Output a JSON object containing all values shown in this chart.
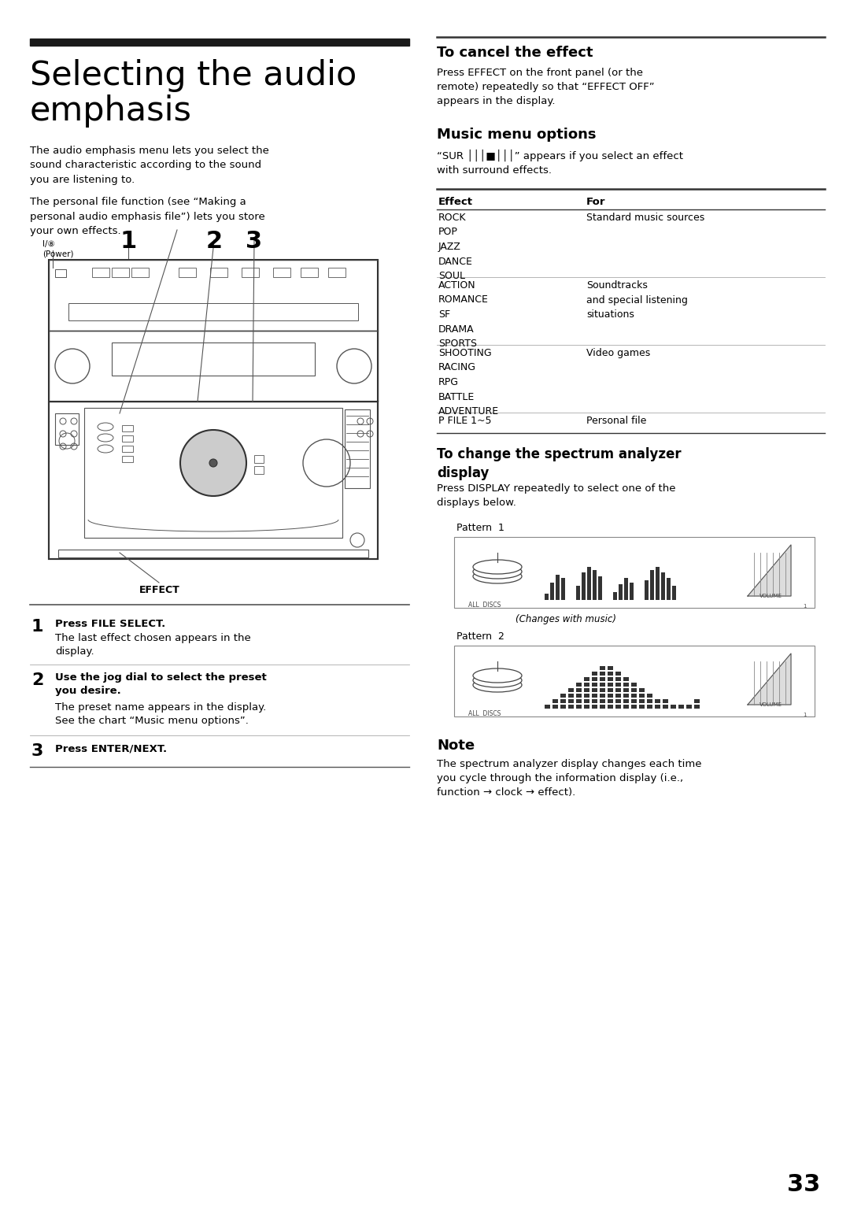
{
  "bg_color": "#ffffff",
  "title_bar_color": "#1a1a1a",
  "page_number": "33",
  "title_line1": "Selecting the audio",
  "title_line2": "emphasis",
  "body1": "The audio emphasis menu lets you select the\nsound characteristic according to the sound\nyou are listening to.",
  "body2": "The personal file function (see “Making a\npersonal audio emphasis file”) lets you store\nyour own effects.",
  "power_label": "I/⑧\n(Power)",
  "cancel_title": "To cancel the effect",
  "cancel_body": "Press EFFECT on the front panel (or the\nremote) repeatedly so that “EFFECT OFF”\nappears in the display.",
  "music_title": "Music menu options",
  "music_body": "“SUR │││■│││” appears if you select an effect\nwith surround effects.",
  "table_header_effect": "Effect",
  "table_header_for": "For",
  "row1_effect": "ROCK\nPOP\nJAZZ\nDANCE\nSOUL",
  "row1_for": "Standard music sources",
  "row2_effect": "ACTION\nROMANCE\nSF\nDRAMA\nSPORTS",
  "row2_for": "Soundtracks\nand special listening\nsituations",
  "row3_effect": "SHOOTING\nRACING\nRPG\nBATTLE\nADVENTURE",
  "row3_for": "Video games",
  "row4_effect": "P FILE 1~5",
  "row4_for": "Personal file",
  "spectrum_title": "To change the spectrum analyzer\ndisplay",
  "spectrum_body": "Press DISPLAY repeatedly to select one of the\ndisplays below.",
  "pattern1_label": "Pattern  1",
  "pattern1_caption": "(Changes with music)",
  "pattern2_label": "Pattern  2",
  "note_title": "Note",
  "note_body": "The spectrum analyzer display changes each time\nyou cycle through the information display (i.e.,\nfunction → clock → effect).",
  "step1_num": "1",
  "step1_bold": "Press FILE SELECT.",
  "step1_body": "The last effect chosen appears in the\ndisplay.",
  "step2_num": "2",
  "step2_bold": "Use the jog dial to select the preset\nyou desire.",
  "step2_body": "The preset name appears in the display.\nSee the chart “Music menu options”.",
  "step3_num": "3",
  "step3_bold": "Press ENTER/NEXT.",
  "effect_label": "EFFECT",
  "label1": "1",
  "label2": "2",
  "label3": "3"
}
